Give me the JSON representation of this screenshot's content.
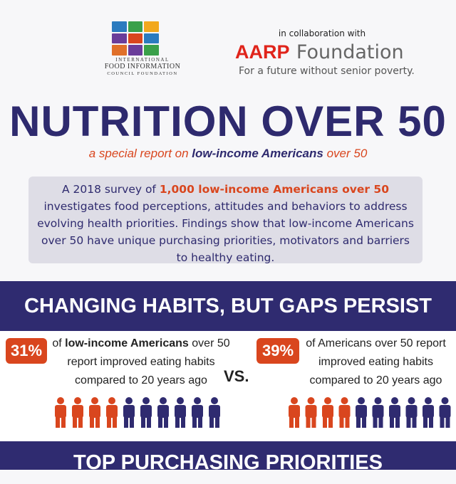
{
  "header": {
    "ific": [
      "INTERNATIONAL",
      "FOOD INFORMATION",
      "COUNCIL FOUNDATION"
    ],
    "collab": "in collaboration with",
    "aarp": {
      "brand": "AARP",
      "name": "Foundation",
      "tagline": "For a future without senior poverty."
    }
  },
  "title": "NUTRITION OVER 50",
  "subtitle": [
    "a special report on ",
    "low-income Americans",
    " over 50"
  ],
  "intro": [
    "A 2018 survey of ",
    "1,000 low-income Americans over 50",
    " investigates food perceptions, attitudes and behaviors to address evolving health priorities. Findings show that low-income Americans over 50 have unique purchasing priorities, motivators and  barriers to healthy eating."
  ],
  "section": {
    "heading": "CHANGING HABITS, BUT GAPS PERSIST",
    "left": {
      "stat": "31%",
      "text": [
        "of ",
        "low-income Americans",
        " over 50",
        "report improved eating habits",
        "compared to 20 years ago"
      ]
    },
    "vs": "VS.",
    "right": {
      "stat": "39%",
      "text": [
        "of Americans over 50 report",
        "improved eating habits",
        "compared to 20 years ago"
      ]
    }
  },
  "next_heading": "TOP PURCHASING PRIORITIES"
}
